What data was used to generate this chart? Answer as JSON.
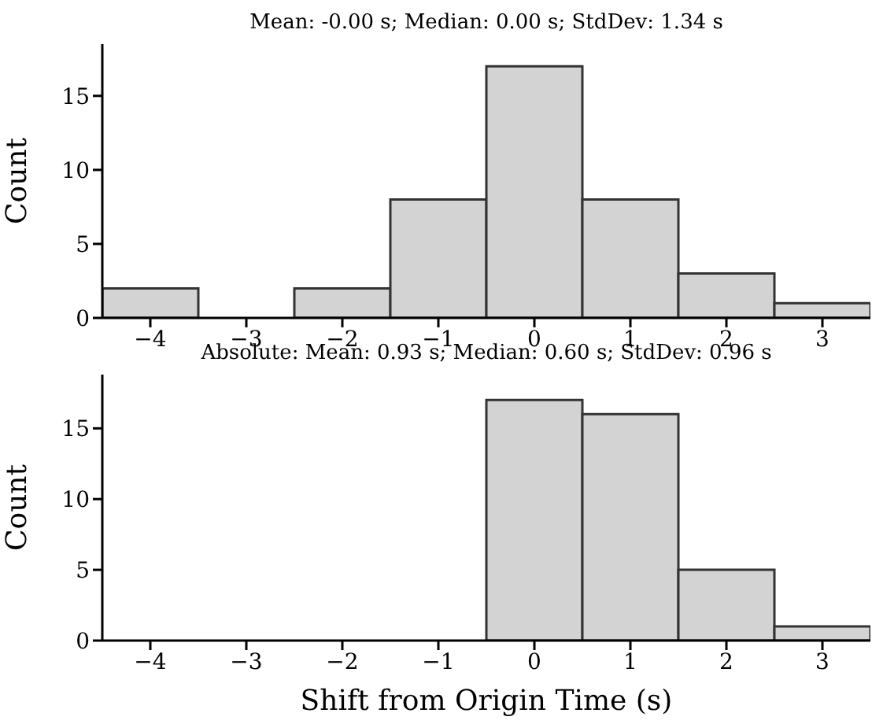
{
  "chart_data": [
    {
      "type": "histogram",
      "title": "Mean: -0.00 s; Median: 0.00 s; StdDev: 1.34 s",
      "ylabel": "Count",
      "bins": [
        -4.5,
        -3.5,
        -2.5,
        -1.5,
        -0.5,
        0.5,
        1.5,
        2.5,
        3.5
      ],
      "values": [
        2,
        0,
        2,
        8,
        17,
        8,
        3,
        1
      ],
      "color": "#d3d3d3",
      "xlim": [
        -4.5,
        3.5
      ],
      "xticks": [
        -4,
        -3,
        -2,
        -1,
        0,
        1,
        2,
        3
      ],
      "ylim": [
        0,
        18.5
      ],
      "yticks": [
        0,
        5,
        10,
        15
      ],
      "grid": false
    },
    {
      "type": "histogram",
      "title": "Absolute: Mean: 0.93 s; Median: 0.60 s; StdDev: 0.96 s",
      "xlabel": "Shift from Origin Time (s)",
      "ylabel": "Count",
      "bins": [
        -0.5,
        0.5,
        1.5,
        2.5,
        3.5
      ],
      "values": [
        17,
        16,
        5,
        1
      ],
      "color": "#d3d3d3",
      "xlim": [
        -4.5,
        3.5
      ],
      "xticks": [
        -4,
        -3,
        -2,
        -1,
        0,
        1,
        2,
        3
      ],
      "ylim": [
        0,
        18.8
      ],
      "yticks": [
        0,
        5,
        10,
        15
      ],
      "grid": false
    }
  ]
}
